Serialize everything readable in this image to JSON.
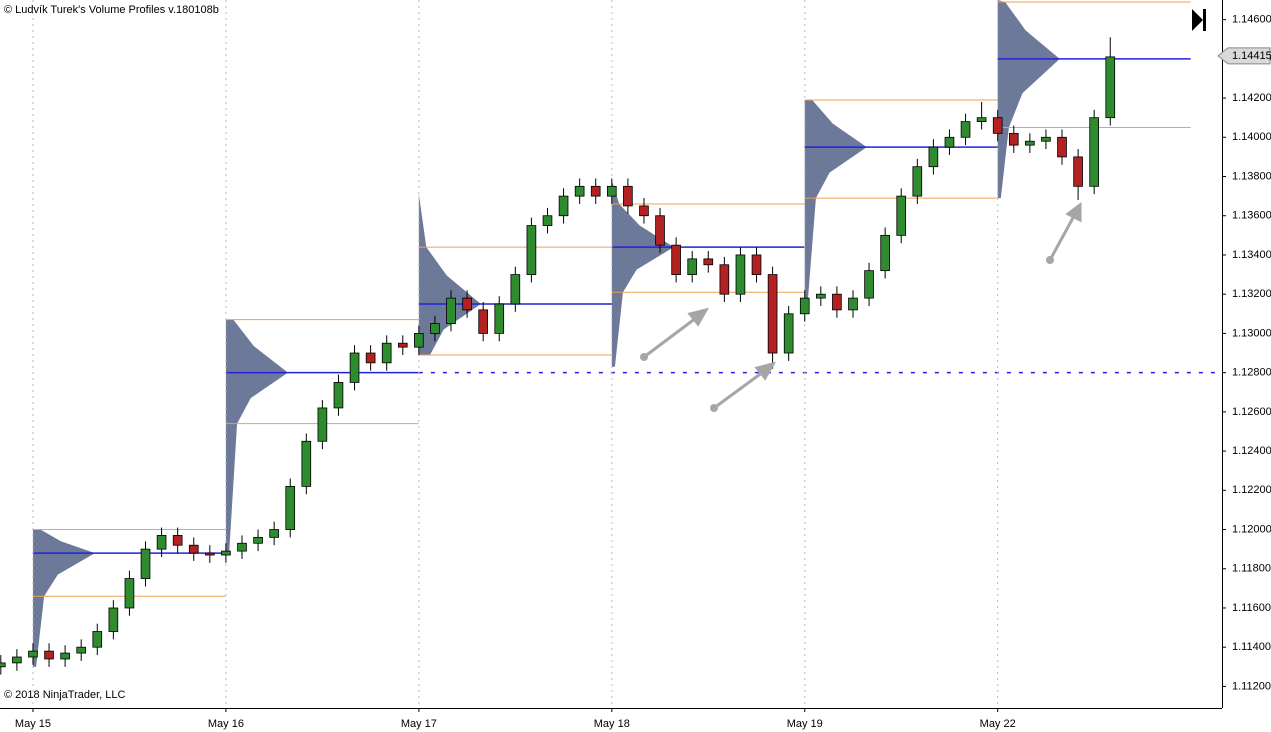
{
  "chart_data": {
    "type": "candlestick",
    "title": "© Ludvík Turek's Volume Profiles v.180108b",
    "copyright": "© 2018 NinjaTrader, LLC",
    "xlim": [
      -0.05,
      75.95
    ],
    "xticks": [
      {
        "value": 2,
        "label": "May 15"
      },
      {
        "value": 14,
        "label": "May 16"
      },
      {
        "value": 26,
        "label": "May 17"
      },
      {
        "value": 38,
        "label": "May 18"
      },
      {
        "value": 50,
        "label": "May 19"
      },
      {
        "value": 62,
        "label": "May 22"
      }
    ],
    "ylim": [
      1.1109,
      1.147
    ],
    "yticks": [
      {
        "value": 1.112,
        "label": "1.11200"
      },
      {
        "value": 1.114,
        "label": "1.11400"
      },
      {
        "value": 1.116,
        "label": "1.11600"
      },
      {
        "value": 1.118,
        "label": "1.11800"
      },
      {
        "value": 1.12,
        "label": "1.12000"
      },
      {
        "value": 1.122,
        "label": "1.12200"
      },
      {
        "value": 1.124,
        "label": "1.12400"
      },
      {
        "value": 1.126,
        "label": "1.12600"
      },
      {
        "value": 1.128,
        "label": "1.12800"
      },
      {
        "value": 1.13,
        "label": "1.13000"
      },
      {
        "value": 1.132,
        "label": "1.13200"
      },
      {
        "value": 1.134,
        "label": "1.13400"
      },
      {
        "value": 1.136,
        "label": "1.13600"
      },
      {
        "value": 1.138,
        "label": "1.13800"
      },
      {
        "value": 1.14,
        "label": "1.14000"
      },
      {
        "value": 1.142,
        "label": "1.14200"
      },
      {
        "value": 1.144,
        "label": "1.14400"
      },
      {
        "value": 1.146,
        "label": "1.14600"
      }
    ],
    "grid": true,
    "up_color": "#2e8b2e",
    "down_color": "#b22222",
    "profile_color": "#5c6a8e",
    "poc_color": "#2222dd",
    "va_color": "#f0a050",
    "last_price": 1.14415,
    "open": [
      1.113,
      1.1132,
      1.1135,
      1.1138,
      1.1134,
      1.1137,
      1.114,
      1.1148,
      1.116,
      1.1175,
      1.119,
      1.1197,
      1.1192,
      1.1188,
      1.1187,
      1.1189,
      1.1193,
      1.1196,
      1.12,
      1.1222,
      1.1245,
      1.1262,
      1.1275,
      1.129,
      1.1285,
      1.1295,
      1.1293,
      1.13,
      1.1305,
      1.1318,
      1.1312,
      1.13,
      1.1315,
      1.133,
      1.1355,
      1.136,
      1.137,
      1.1375,
      1.137,
      1.1375,
      1.1365,
      1.136,
      1.1345,
      1.133,
      1.1338,
      1.1335,
      1.132,
      1.134,
      1.133,
      1.129,
      1.131,
      1.1318,
      1.132,
      1.1312,
      1.1318,
      1.1332,
      1.135,
      1.137,
      1.1385,
      1.1395,
      1.14,
      1.1408,
      1.141,
      1.1402,
      1.1396,
      1.1398,
      1.14,
      1.139,
      1.1375,
      1.141
    ],
    "high": [
      1.1136,
      1.1139,
      1.1142,
      1.1142,
      1.1141,
      1.1144,
      1.1152,
      1.1164,
      1.1179,
      1.1194,
      1.1201,
      1.1201,
      1.1196,
      1.1192,
      1.1193,
      1.1197,
      1.12,
      1.1204,
      1.1226,
      1.1249,
      1.1266,
      1.1279,
      1.1294,
      1.1294,
      1.1299,
      1.1299,
      1.1304,
      1.1309,
      1.1322,
      1.1322,
      1.1316,
      1.1319,
      1.1334,
      1.1359,
      1.1364,
      1.1374,
      1.1379,
      1.1379,
      1.1379,
      1.1379,
      1.1369,
      1.1364,
      1.1349,
      1.1342,
      1.1342,
      1.1339,
      1.1344,
      1.1344,
      1.1334,
      1.1314,
      1.1322,
      1.1324,
      1.1324,
      1.1322,
      1.1336,
      1.1354,
      1.1374,
      1.1389,
      1.1399,
      1.1404,
      1.1412,
      1.1418,
      1.1414,
      1.1406,
      1.1402,
      1.1404,
      1.1404,
      1.1394,
      1.1414,
      1.1451
    ],
    "low": [
      1.1126,
      1.1128,
      1.1131,
      1.113,
      1.113,
      1.1133,
      1.1136,
      1.1144,
      1.1156,
      1.1171,
      1.1186,
      1.1188,
      1.1184,
      1.1183,
      1.1183,
      1.1185,
      1.1189,
      1.1192,
      1.1196,
      1.1218,
      1.1241,
      1.1258,
      1.1271,
      1.1281,
      1.1281,
      1.1289,
      1.1289,
      1.1296,
      1.1301,
      1.1308,
      1.1296,
      1.1296,
      1.1311,
      1.1326,
      1.1351,
      1.1356,
      1.1366,
      1.1366,
      1.1366,
      1.1361,
      1.1356,
      1.1341,
      1.1326,
      1.1326,
      1.1331,
      1.1316,
      1.1316,
      1.1326,
      1.1282,
      1.1286,
      1.1306,
      1.1314,
      1.1308,
      1.1308,
      1.1314,
      1.1328,
      1.1346,
      1.1366,
      1.1381,
      1.1391,
      1.1396,
      1.1404,
      1.1398,
      1.1392,
      1.1392,
      1.1394,
      1.1386,
      1.1368,
      1.1371,
      1.1406
    ],
    "close": [
      1.1132,
      1.1135,
      1.1138,
      1.1134,
      1.1137,
      1.114,
      1.1148,
      1.116,
      1.1175,
      1.119,
      1.1197,
      1.1192,
      1.1188,
      1.1187,
      1.1189,
      1.1193,
      1.1196,
      1.12,
      1.1222,
      1.1245,
      1.1262,
      1.1275,
      1.129,
      1.1285,
      1.1295,
      1.1293,
      1.13,
      1.1305,
      1.1318,
      1.1312,
      1.13,
      1.1315,
      1.133,
      1.1355,
      1.136,
      1.137,
      1.1375,
      1.137,
      1.1375,
      1.1365,
      1.136,
      1.1345,
      1.133,
      1.1338,
      1.1335,
      1.132,
      1.134,
      1.133,
      1.129,
      1.131,
      1.1318,
      1.132,
      1.1312,
      1.1318,
      1.1332,
      1.135,
      1.137,
      1.1385,
      1.1395,
      1.14,
      1.1408,
      1.141,
      1.1402,
      1.1396,
      1.1398,
      1.14,
      1.139,
      1.1375,
      1.141,
      1.1441
    ],
    "profiles": [
      {
        "high": 1.12,
        "vah": 1.12,
        "poc": 1.1188,
        "val": 1.1166,
        "low": 1.113,
        "extended": false
      },
      {
        "high": 1.1307,
        "vah": 1.1307,
        "poc": 1.128,
        "val": 1.1254,
        "low": 1.1187,
        "extended": true
      },
      {
        "high": 1.1371,
        "vah": 1.1344,
        "poc": 1.1315,
        "val": 1.1289,
        "low": 1.1289,
        "extended": false
      },
      {
        "high": 1.1378,
        "vah": 1.1366,
        "poc": 1.1344,
        "val": 1.1321,
        "low": 1.1283,
        "extended": false
      },
      {
        "high": 1.1419,
        "vah": 1.1419,
        "poc": 1.1395,
        "val": 1.1369,
        "low": 1.1317,
        "extended": false
      },
      {
        "high": 1.147,
        "vah": 1.1469,
        "poc": 1.144,
        "val": 1.1405,
        "low": 1.1369,
        "extended": false
      }
    ]
  }
}
